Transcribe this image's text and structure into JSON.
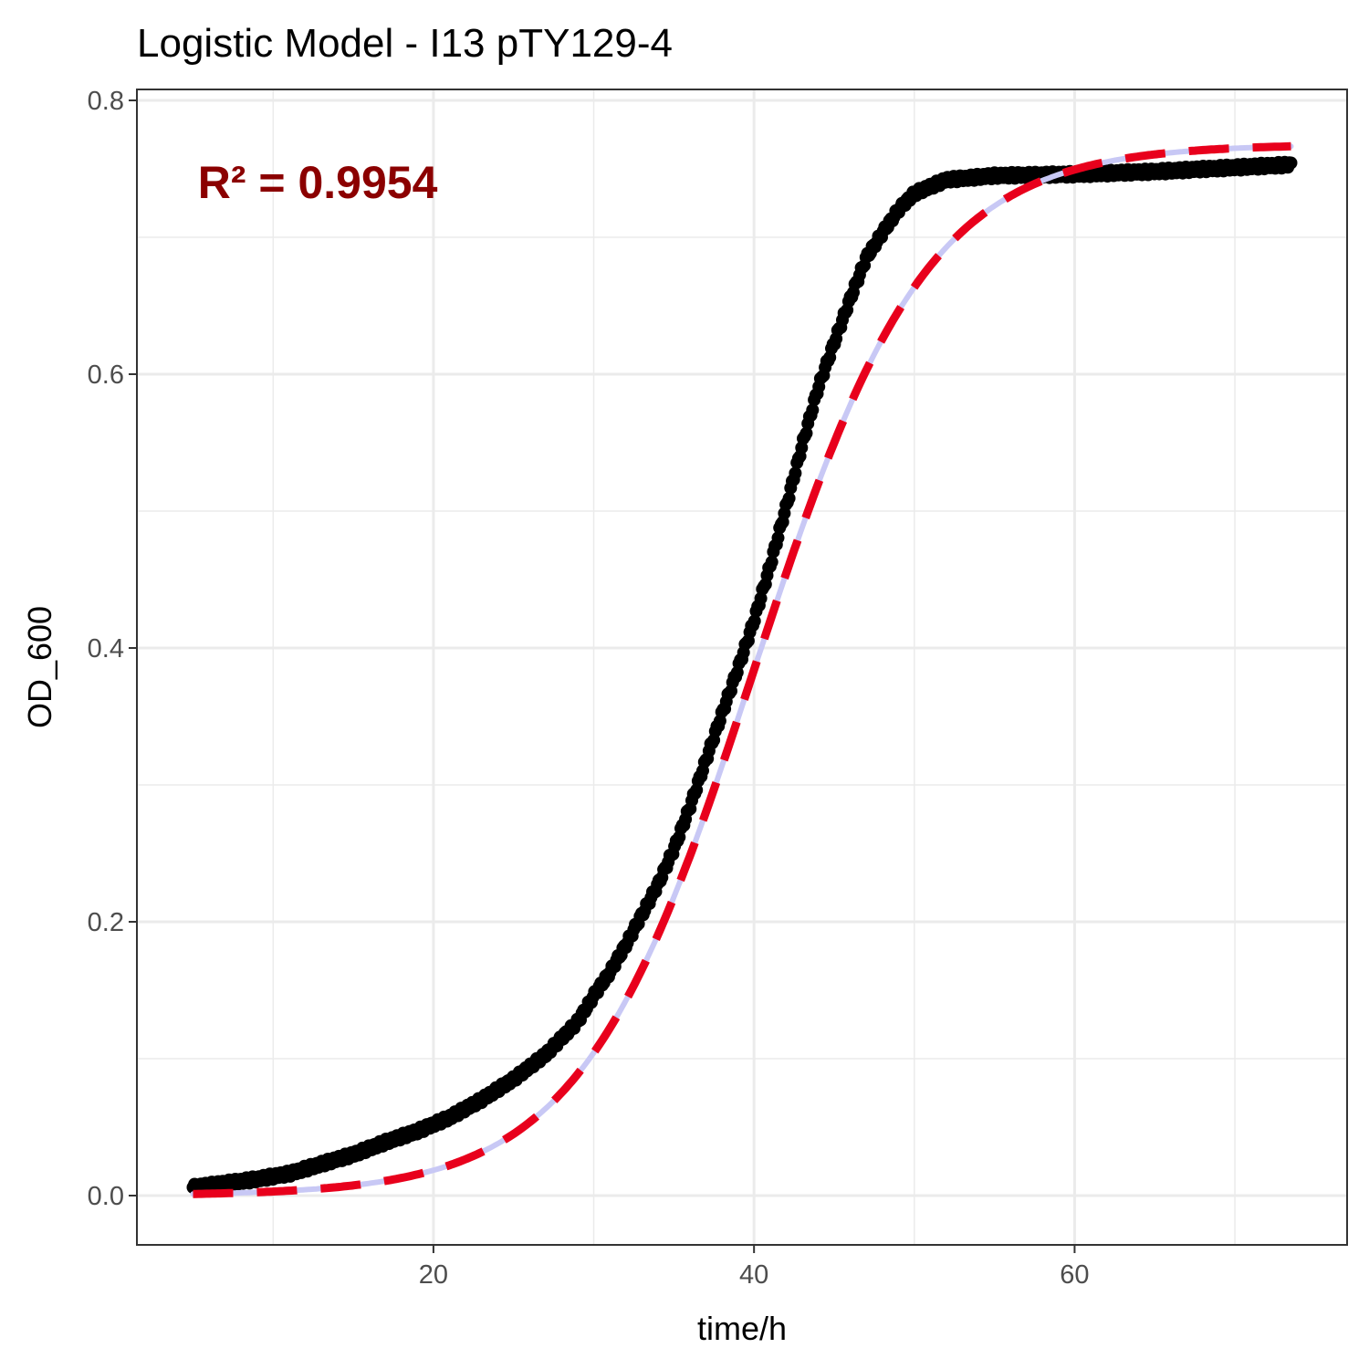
{
  "chart_data": {
    "type": "scatter",
    "title": "Logistic Model -  I13 pTY129-4",
    "xlabel": "time/h",
    "ylabel": "OD_600",
    "xlim": [
      1.5,
      77.0
    ],
    "ylim": [
      -0.036,
      0.808
    ],
    "xticks": [
      20,
      40,
      60
    ],
    "xtick_labels": [
      "20",
      "40",
      "60"
    ],
    "xticks_minor": [
      10,
      30,
      50,
      70
    ],
    "yticks": [
      0.0,
      0.2,
      0.4,
      0.6,
      0.8
    ],
    "ytick_labels": [
      "0.0",
      "0.2",
      "0.4",
      "0.6",
      "0.8"
    ],
    "yticks_minor": [
      0.1,
      0.3,
      0.5,
      0.7
    ],
    "grid": true,
    "annotation": {
      "text": "R² = 0.9954",
      "x": 5.3,
      "y": 0.74,
      "color": "#8b0000"
    },
    "series": [
      {
        "type": "scatter",
        "color": "#000000",
        "x_range": [
          5.0,
          73.5
        ],
        "points": [
          [
            5.0,
            0.006
          ],
          [
            7.0,
            0.009
          ],
          [
            9.0,
            0.012
          ],
          [
            11.0,
            0.016
          ],
          [
            13.0,
            0.023
          ],
          [
            15.0,
            0.03
          ],
          [
            17.0,
            0.039
          ],
          [
            19.0,
            0.047
          ],
          [
            21.0,
            0.057
          ],
          [
            23.0,
            0.07
          ],
          [
            25.0,
            0.085
          ],
          [
            27.0,
            0.103
          ],
          [
            29.0,
            0.127
          ],
          [
            30.0,
            0.146
          ],
          [
            31.0,
            0.163
          ],
          [
            32.0,
            0.183
          ],
          [
            33.0,
            0.205
          ],
          [
            34.0,
            0.227
          ],
          [
            35.0,
            0.253
          ],
          [
            36.0,
            0.284
          ],
          [
            37.0,
            0.318
          ],
          [
            38.0,
            0.352
          ],
          [
            39.0,
            0.385
          ],
          [
            40.0,
            0.42
          ],
          [
            41.0,
            0.46
          ],
          [
            42.0,
            0.503
          ],
          [
            43.0,
            0.548
          ],
          [
            44.0,
            0.59
          ],
          [
            45.0,
            0.623
          ],
          [
            46.0,
            0.655
          ],
          [
            47.0,
            0.685
          ],
          [
            48.0,
            0.703
          ],
          [
            49.0,
            0.72
          ],
          [
            50.0,
            0.732
          ],
          [
            52.0,
            0.742
          ],
          [
            55.0,
            0.745
          ],
          [
            60.0,
            0.746
          ],
          [
            65.0,
            0.748
          ],
          [
            70.0,
            0.751
          ],
          [
            73.5,
            0.753
          ]
        ]
      },
      {
        "type": "line",
        "style": "dashed",
        "color": "#e8001c",
        "model": "logistic",
        "params": {
          "K": 0.768,
          "r": 0.185,
          "t_mid": 40.0
        },
        "x_range": [
          5.0,
          73.5
        ]
      },
      {
        "type": "line",
        "style": "solid",
        "color": "#c8c8f5",
        "model": "logistic",
        "params": {
          "K": 0.768,
          "r": 0.185,
          "t_mid": 40.0
        },
        "x_range": [
          5.0,
          73.5
        ]
      }
    ]
  }
}
